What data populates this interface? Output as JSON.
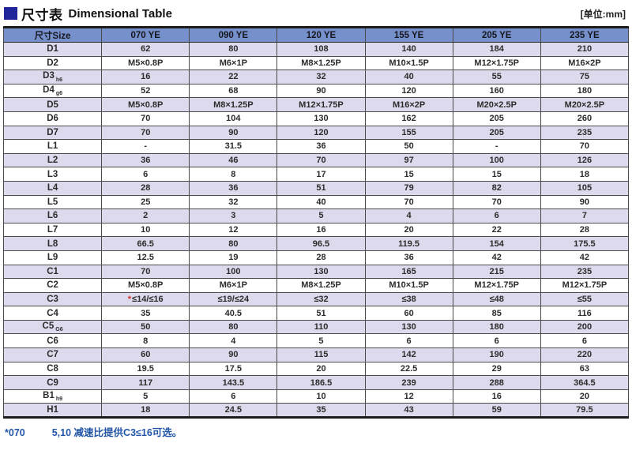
{
  "title": {
    "cjk": "尺寸表",
    "en": "Dimensional Table",
    "unit": "[单位:mm]"
  },
  "colors": {
    "header_bg": "#7590cb",
    "alt_row_bg": "#dcdaec",
    "title_square": "#20269a",
    "footnote_blue": "#2356a7",
    "asterisk_red": "#d2302c"
  },
  "table": {
    "header": [
      "尺寸Size",
      "070 YE",
      "090 YE",
      "120 YE",
      "155 YE",
      "205 YE",
      "235 YE"
    ],
    "rows": [
      {
        "label": "D1",
        "sub": "",
        "values": [
          "62",
          "80",
          "108",
          "140",
          "184",
          "210"
        ]
      },
      {
        "label": "D2",
        "sub": "",
        "values": [
          "M5×0.8P",
          "M6×1P",
          "M8×1.25P",
          "M10×1.5P",
          "M12×1.75P",
          "M16×2P"
        ]
      },
      {
        "label": "D3",
        "sub": "h6",
        "values": [
          "16",
          "22",
          "32",
          "40",
          "55",
          "75"
        ]
      },
      {
        "label": "D4",
        "sub": "g6",
        "values": [
          "52",
          "68",
          "90",
          "120",
          "160",
          "180"
        ]
      },
      {
        "label": "D5",
        "sub": "",
        "values": [
          "M5×0.8P",
          "M8×1.25P",
          "M12×1.75P",
          "M16×2P",
          "M20×2.5P",
          "M20×2.5P"
        ]
      },
      {
        "label": "D6",
        "sub": "",
        "values": [
          "70",
          "104",
          "130",
          "162",
          "205",
          "260"
        ]
      },
      {
        "label": "D7",
        "sub": "",
        "values": [
          "70",
          "90",
          "120",
          "155",
          "205",
          "235"
        ]
      },
      {
        "label": "L1",
        "sub": "",
        "values": [
          "-",
          "31.5",
          "36",
          "50",
          "-",
          "70"
        ]
      },
      {
        "label": "L2",
        "sub": "",
        "values": [
          "36",
          "46",
          "70",
          "97",
          "100",
          "126"
        ]
      },
      {
        "label": "L3",
        "sub": "",
        "values": [
          "6",
          "8",
          "17",
          "15",
          "15",
          "18"
        ]
      },
      {
        "label": "L4",
        "sub": "",
        "values": [
          "28",
          "36",
          "51",
          "79",
          "82",
          "105"
        ]
      },
      {
        "label": "L5",
        "sub": "",
        "values": [
          "25",
          "32",
          "40",
          "70",
          "70",
          "90"
        ]
      },
      {
        "label": "L6",
        "sub": "",
        "values": [
          "2",
          "3",
          "5",
          "4",
          "6",
          "7"
        ]
      },
      {
        "label": "L7",
        "sub": "",
        "values": [
          "10",
          "12",
          "16",
          "20",
          "22",
          "28"
        ]
      },
      {
        "label": "L8",
        "sub": "",
        "values": [
          "66.5",
          "80",
          "96.5",
          "119.5",
          "154",
          "175.5"
        ]
      },
      {
        "label": "L9",
        "sub": "",
        "values": [
          "12.5",
          "19",
          "28",
          "36",
          "42",
          "42"
        ]
      },
      {
        "label": "C1",
        "sub": "",
        "values": [
          "70",
          "100",
          "130",
          "165",
          "215",
          "235"
        ]
      },
      {
        "label": "C2",
        "sub": "",
        "values": [
          "M5×0.8P",
          "M6×1P",
          "M8×1.25P",
          "M10×1.5P",
          "M12×1.75P",
          "M12×1.75P"
        ]
      },
      {
        "label": "C3",
        "sub": "",
        "values": [
          "*≤14/≤16",
          "≤19/≤24",
          "≤32",
          "≤38",
          "≤48",
          "≤55"
        ]
      },
      {
        "label": "C4",
        "sub": "",
        "values": [
          "35",
          "40.5",
          "51",
          "60",
          "85",
          "116"
        ]
      },
      {
        "label": "C5",
        "sub": "G6",
        "values": [
          "50",
          "80",
          "110",
          "130",
          "180",
          "200"
        ]
      },
      {
        "label": "C6",
        "sub": "",
        "values": [
          "8",
          "4",
          "5",
          "6",
          "6",
          "6"
        ]
      },
      {
        "label": "C7",
        "sub": "",
        "values": [
          "60",
          "90",
          "115",
          "142",
          "190",
          "220"
        ]
      },
      {
        "label": "C8",
        "sub": "",
        "values": [
          "19.5",
          "17.5",
          "20",
          "22.5",
          "29",
          "63"
        ]
      },
      {
        "label": "C9",
        "sub": "",
        "values": [
          "117",
          "143.5",
          "186.5",
          "239",
          "288",
          "364.5"
        ]
      },
      {
        "label": "B1",
        "sub": "h9",
        "values": [
          "5",
          "6",
          "10",
          "12",
          "16",
          "20"
        ]
      },
      {
        "label": "H1",
        "sub": "",
        "values": [
          "18",
          "24.5",
          "35",
          "43",
          "59",
          "79.5"
        ]
      }
    ]
  },
  "footnote": {
    "marker": "*070",
    "text": "5,10 减速比提供C3≤16可选。"
  }
}
